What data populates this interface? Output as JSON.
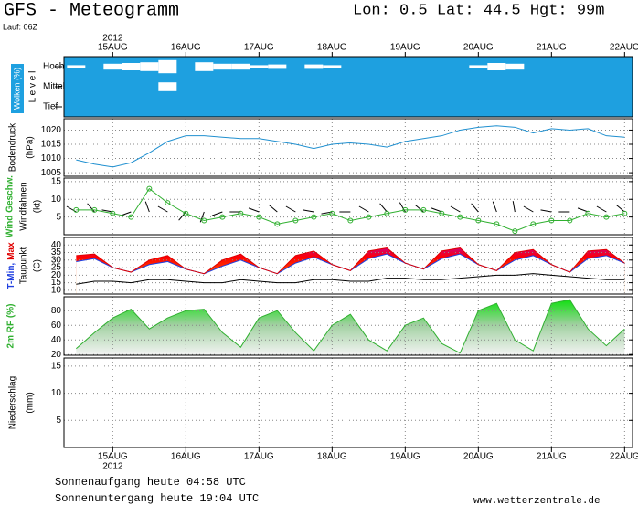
{
  "title": "GFS - Meteogramm",
  "location": "Lon: 0.5 Lat: 44.5 Hgt: 99m",
  "run": "Lauf: 06Z",
  "sunrise": "Sonnenaufgang heute 04:58 UTC",
  "sunset": "Sonnenuntergang heute 19:04 UTC",
  "source": "www.wetterzentrale.de",
  "chart_data": {
    "type": "meteogram",
    "year": "2012",
    "x": [
      -12,
      -6,
      0,
      6,
      12,
      18,
      24,
      30,
      36,
      42,
      48,
      54,
      60,
      66,
      72,
      78,
      84,
      90,
      96,
      102,
      108,
      114,
      120,
      126,
      132,
      138,
      144,
      150,
      156,
      162,
      168
    ],
    "xlim": [
      -16,
      170.6
    ],
    "xticks": [
      {
        "value": 0,
        "label": "15AUG"
      },
      {
        "value": 24,
        "label": "16AUG"
      },
      {
        "value": 48,
        "label": "17AUG"
      },
      {
        "value": 72,
        "label": "18AUG"
      },
      {
        "value": 96,
        "label": "19AUG"
      },
      {
        "value": 120,
        "label": "20AUG"
      },
      {
        "value": 144,
        "label": "21AUG"
      },
      {
        "value": 168,
        "label": "22AUG"
      }
    ],
    "panels": [
      {
        "type": "cloud",
        "label": "Wolken (%)",
        "axis_label": "L e v e l",
        "background": "#1ea0e0",
        "color": "#ffffff",
        "series": [
          {
            "name": "Hoch",
            "values": [
              20,
              0,
              40,
              50,
              60,
              90,
              0,
              60,
              40,
              40,
              20,
              30,
              0,
              30,
              20,
              0,
              0,
              0,
              0,
              0,
              0,
              0,
              20,
              50,
              40,
              0,
              0,
              0,
              0,
              0,
              0
            ]
          },
          {
            "name": "Mittel",
            "values": [
              0,
              0,
              0,
              0,
              0,
              60,
              0,
              0,
              0,
              0,
              0,
              0,
              0,
              0,
              0,
              0,
              0,
              0,
              0,
              0,
              0,
              0,
              0,
              0,
              0,
              0,
              0,
              0,
              0,
              0,
              0
            ]
          },
          {
            "name": "Tief",
            "values": [
              0,
              0,
              0,
              0,
              0,
              0,
              0,
              0,
              0,
              0,
              0,
              0,
              0,
              0,
              0,
              0,
              0,
              0,
              0,
              0,
              0,
              0,
              0,
              0,
              0,
              0,
              0,
              0,
              0,
              0,
              0
            ]
          }
        ]
      },
      {
        "type": "line",
        "labels": [
          "Bodendruck",
          "(hPa)"
        ],
        "ylim": [
          1003.75,
          1024
        ],
        "yticks": [
          1005,
          1010,
          1015,
          1020
        ],
        "grid": true,
        "series": [
          {
            "color": "#2090d0",
            "values": [
              1009.5,
              1008,
              1007,
              1008.5,
              1012,
              1016,
              1018,
              1018,
              1017.5,
              1017,
              1017,
              1016,
              1015,
              1013.5,
              1015,
              1015.5,
              1015,
              1014,
              1016,
              1017,
              1018,
              1020,
              1021,
              1021.5,
              1021,
              1019,
              1020.5,
              1020,
              1020.5,
              1018,
              1017.5
            ]
          }
        ]
      },
      {
        "type": "wind",
        "labels": [
          "Windfahnen",
          "(kt)"
        ],
        "ylim": [
          0,
          16
        ],
        "yticks": [
          5,
          10,
          15
        ],
        "grid": true,
        "series": [
          {
            "name": "Wind Geschw.",
            "color": "#30b030",
            "values": [
              7,
              7,
              6,
              5,
              13,
              9,
              6,
              4,
              5,
              6,
              5,
              3,
              4,
              5,
              6,
              4,
              5,
              6,
              7,
              7,
              6,
              5,
              4,
              3,
              1,
              3,
              4,
              4,
              6,
              5,
              6
            ]
          }
        ],
        "direction": [
          300,
          320,
          280,
          250,
          340,
          300,
          220,
          200,
          250,
          270,
          290,
          310,
          300,
          280,
          260,
          270,
          300,
          320,
          330,
          310,
          290,
          300,
          320,
          340,
          350,
          300,
          280,
          270,
          290,
          300,
          310
        ]
      },
      {
        "type": "temperature",
        "labels": [
          "Taupunkt",
          "(C)"
        ],
        "ylim": [
          7.5,
          45
        ],
        "yticks": [
          10,
          15,
          20,
          25,
          30,
          35,
          40
        ],
        "grid": true,
        "series": [
          {
            "name": "T-Min,",
            "color": "#2040e0",
            "values": [
              29,
              31,
              25,
              22,
              27,
              29,
              24,
              21,
              26,
              30,
              25,
              21,
              28,
              32,
              27,
              23,
              31,
              34,
              28,
              24,
              31,
              34,
              27,
              23,
              30,
              33,
              27,
              22,
              31,
              33,
              28
            ]
          },
          {
            "name": "Max",
            "color": "#e00000",
            "values": [
              33,
              34,
              25,
              22,
              30,
              33,
              24,
              21,
              30,
              34,
              25,
              21,
              33,
              36,
              27,
              23,
              36,
              38,
              28,
              24,
              36,
              38,
              27,
              23,
              35,
              37,
              27,
              22,
              36,
              37,
              28
            ]
          },
          {
            "name": "Taupunkt",
            "color": "#000000",
            "values": [
              14,
              16,
              16,
              15,
              17,
              17,
              16,
              15,
              15,
              17,
              16,
              15,
              15,
              17,
              17,
              16,
              16,
              18,
              18,
              17,
              17,
              18,
              19,
              20,
              20,
              21,
              20,
              19,
              18,
              17,
              17
            ]
          }
        ]
      },
      {
        "type": "area",
        "labels": [],
        "ylim": [
          19,
          99
        ],
        "yticks": [
          20,
          40,
          60,
          80
        ],
        "grid": true,
        "series": [
          {
            "name": "2m RF (%)",
            "color": "#30b030",
            "values": [
              28,
              50,
              70,
              82,
              55,
              70,
              80,
              82,
              50,
              30,
              70,
              80,
              50,
              25,
              60,
              75,
              40,
              25,
              60,
              70,
              35,
              22,
              80,
              90,
              40,
              25,
              90,
              95,
              55,
              32,
              55
            ]
          }
        ]
      },
      {
        "type": "bar",
        "labels": [
          "Niederschlag",
          "(mm)"
        ],
        "ylim": [
          0,
          16.5
        ],
        "yticks": [
          5,
          10,
          15
        ],
        "grid": true,
        "series": [
          {
            "color": "#30b030",
            "values": [
              0,
              0,
              0,
              0,
              0,
              0,
              0,
              0,
              0,
              0,
              0,
              0,
              0,
              0,
              0,
              0,
              0,
              0,
              0,
              0,
              0,
              0,
              0,
              0,
              0,
              0,
              0,
              0,
              0,
              0,
              0
            ]
          }
        ]
      }
    ]
  }
}
